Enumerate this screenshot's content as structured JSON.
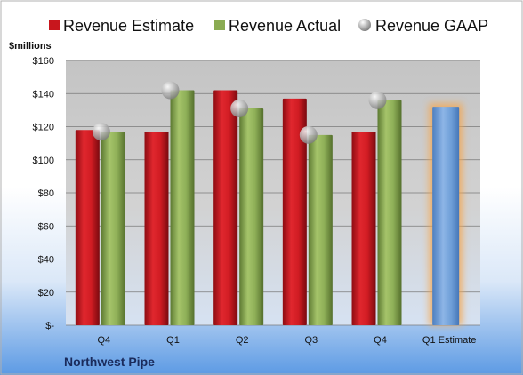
{
  "company": "Northwest Pipe",
  "chart_data": {
    "type": "bar",
    "ylabel": "$millions",
    "ylim": [
      0,
      160
    ],
    "ytick_step": 20,
    "y_tick_labels": [
      "$-",
      "$20",
      "$40",
      "$60",
      "$80",
      "$100",
      "$120",
      "$140",
      "$160"
    ],
    "categories": [
      "Q4",
      "Q1",
      "Q2",
      "Q3",
      "Q4",
      "Q1 Estimate"
    ],
    "series": [
      {
        "name": "Revenue Estimate",
        "kind": "bar",
        "color": "#c8161d",
        "values": [
          118,
          117,
          142,
          137,
          117,
          null
        ]
      },
      {
        "name": "Revenue Actual",
        "kind": "bar",
        "color": "#8aab52",
        "values": [
          117,
          142,
          131,
          115,
          136,
          null
        ]
      },
      {
        "name": "Revenue GAAP",
        "kind": "marker",
        "color": "#b8b8b8",
        "values": [
          117,
          142,
          131,
          115,
          136,
          null
        ]
      }
    ],
    "forecast": {
      "category": "Q1 Estimate",
      "value": 132,
      "color": "#6f9fd8",
      "glow_color": "#f7a54a"
    },
    "grid": true,
    "legend_position": "top"
  }
}
